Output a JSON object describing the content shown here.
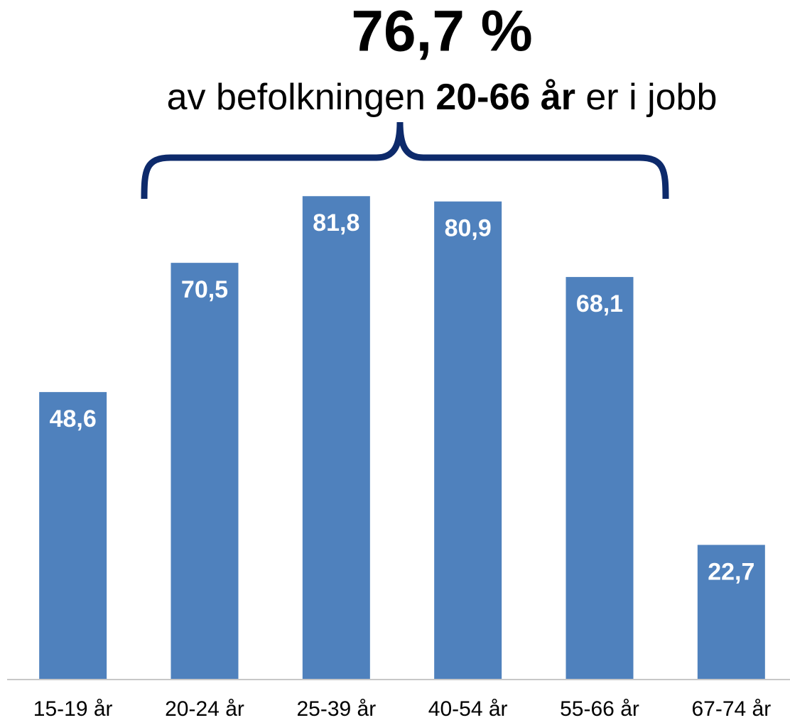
{
  "chart_data": {
    "type": "bar",
    "headline": "76,7 %",
    "subtitle_parts": [
      "av befolkningen",
      "20-66 år",
      "er i jobb"
    ],
    "categories": [
      "15-19 år",
      "20-24 år",
      "25-39 år",
      "40-54 år",
      "55-66 år",
      "67-74 år"
    ],
    "values": [
      48.6,
      70.5,
      81.8,
      80.9,
      68.1,
      22.7
    ],
    "value_labels": [
      "48,6",
      "70,5",
      "81,8",
      "80,9",
      "68,1",
      "22,7"
    ],
    "color": "#4f81bd",
    "ylim": [
      0,
      100
    ]
  }
}
